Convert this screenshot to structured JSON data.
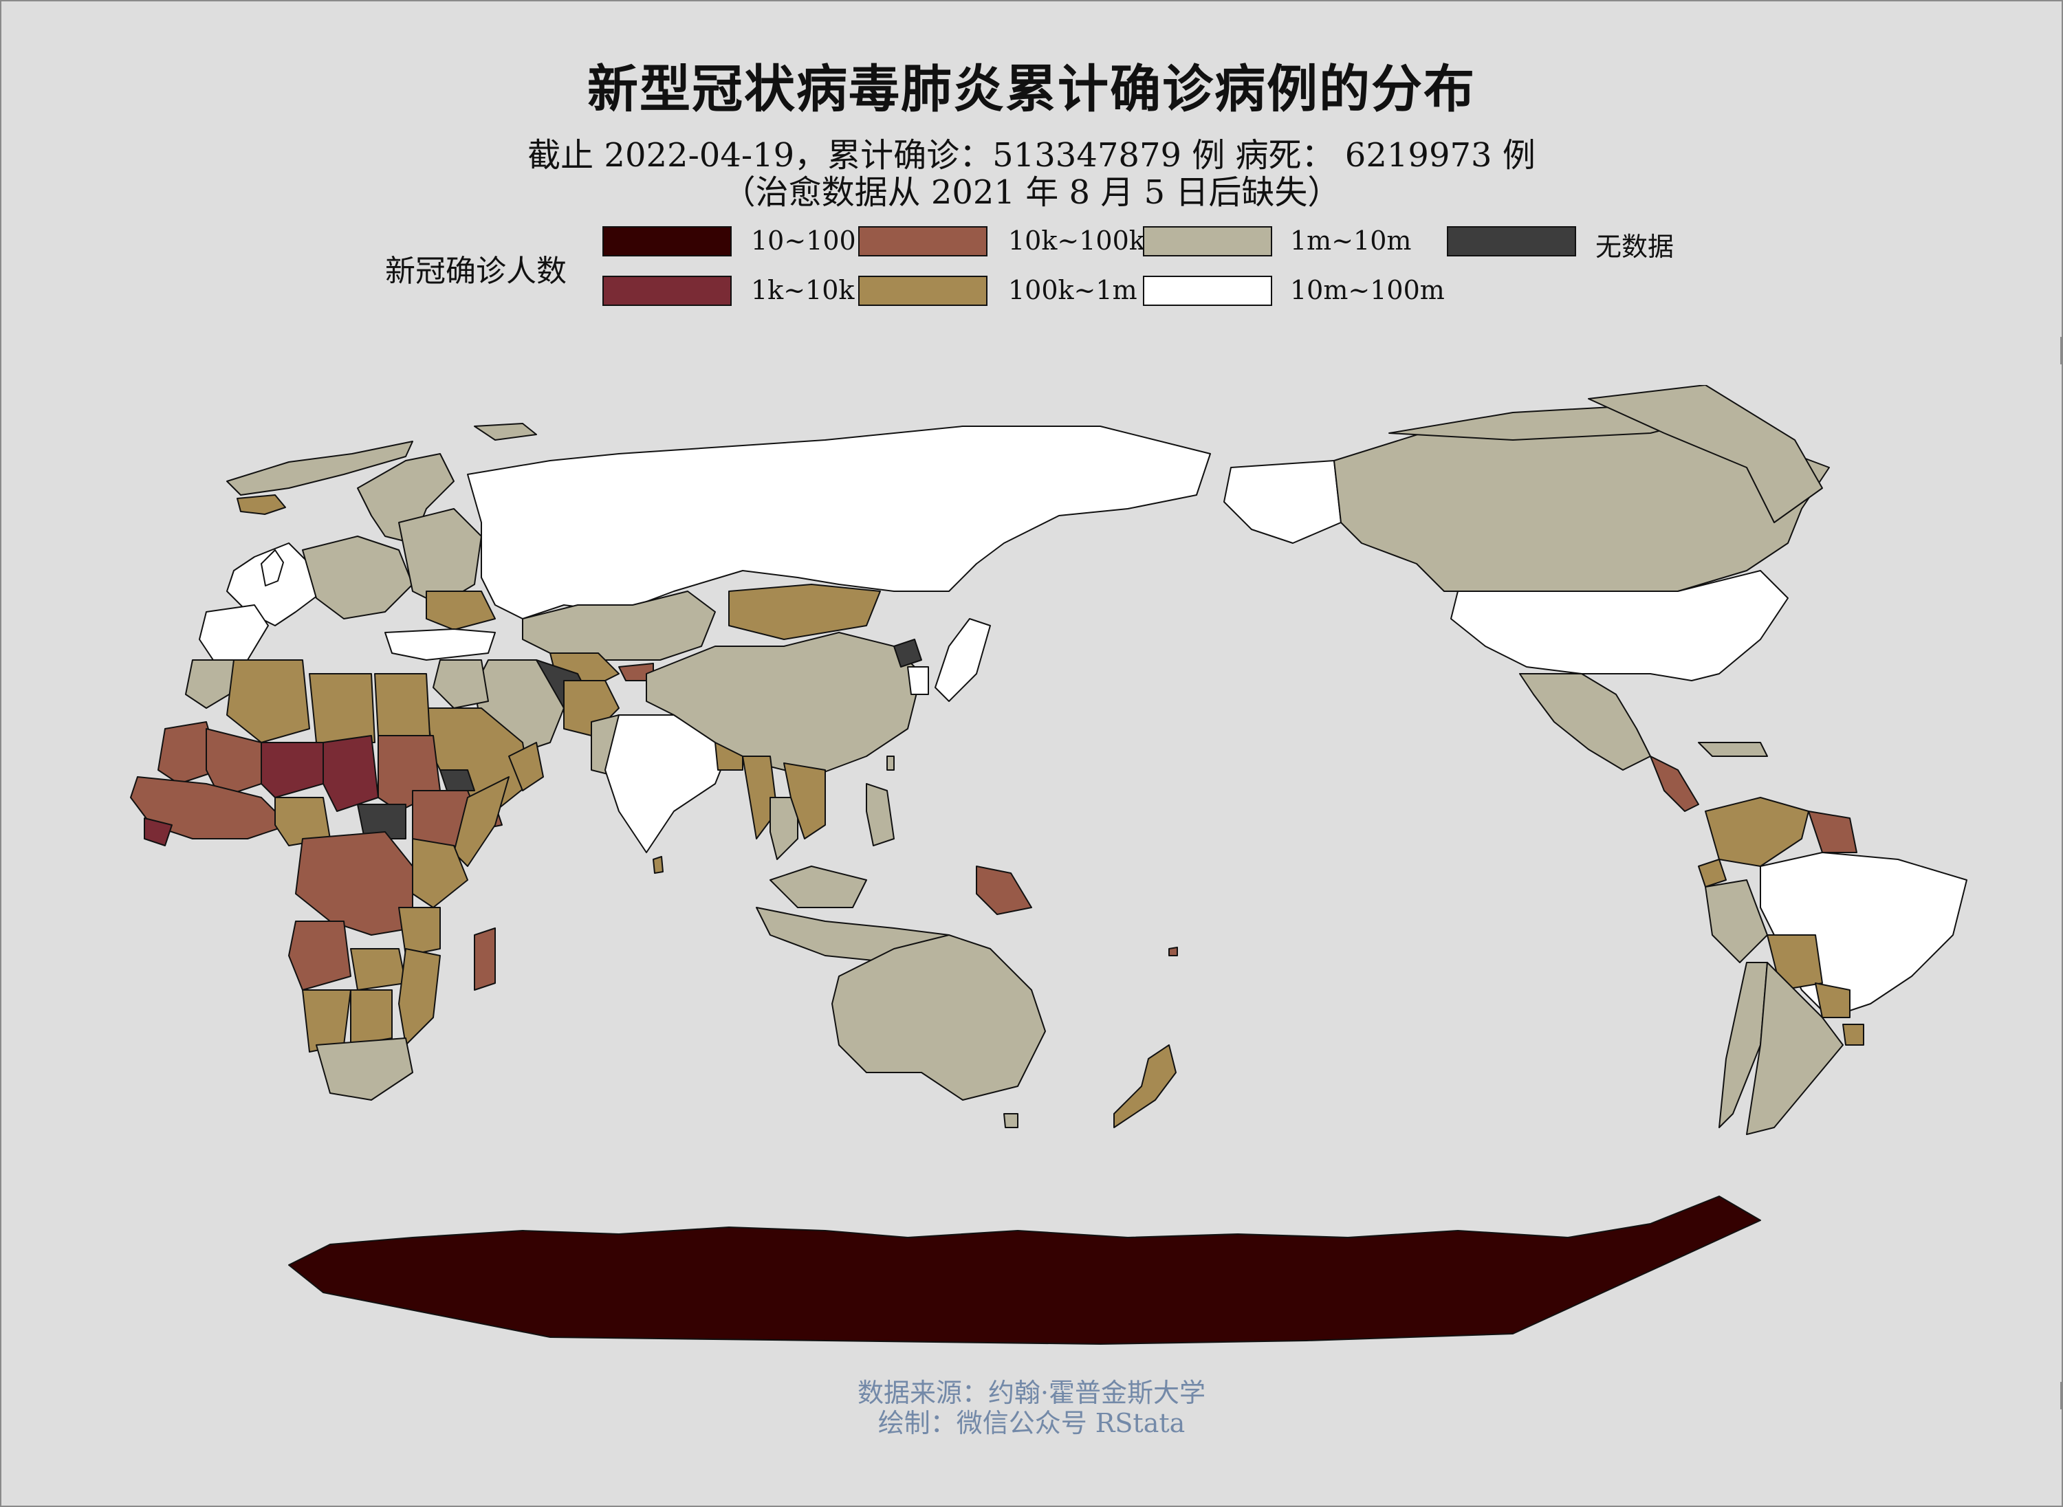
{
  "title": "新型冠状病毒肺炎累计确诊病例的分布",
  "subtitle": {
    "line1": "截止 2022-04-19，累计确诊：513347879 例  病死：  6219973 例",
    "line2": "（治愈数据从 2021 年 8 月 5 日后缺失）"
  },
  "legend": {
    "title": "新冠确诊人数",
    "items": [
      {
        "label": "10~100",
        "color": "#340101"
      },
      {
        "label": "1k~10k",
        "color": "#7a2b35"
      },
      {
        "label": "10k~100k",
        "color": "#985a48"
      },
      {
        "label": "100k~1m",
        "color": "#a68a52"
      },
      {
        "label": "1m~10m",
        "color": "#b8b49e"
      },
      {
        "label": "10m~100m",
        "color": "#ffffff"
      },
      {
        "label": "无数据",
        "color": "#3d3d3d"
      }
    ]
  },
  "caption": {
    "source": "数据来源：约翰·霍普金斯大学",
    "author": "绘制：微信公众号 RStata"
  },
  "colors": {
    "background": "#dedede",
    "border": "#8a8a8a",
    "caption": "#7389a8",
    "country_stroke": "#111111"
  }
}
